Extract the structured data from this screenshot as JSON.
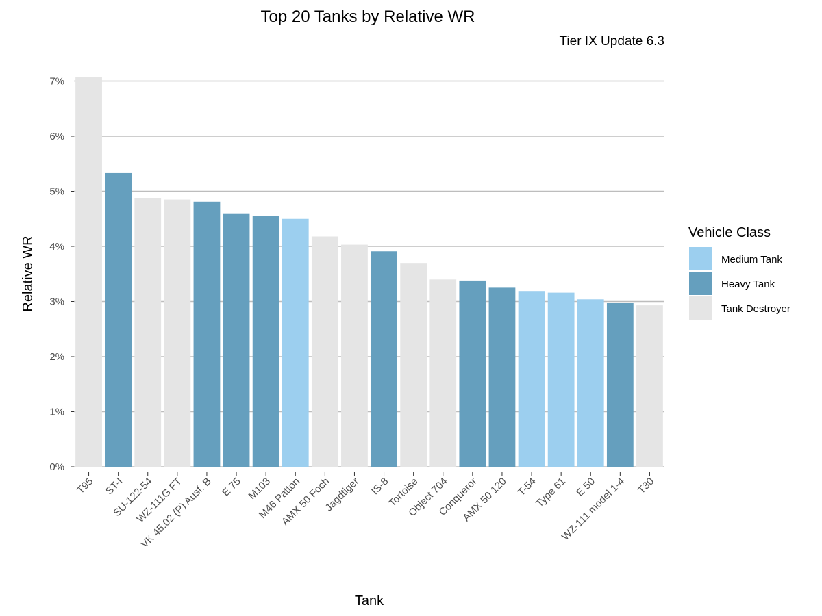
{
  "chart_data": {
    "type": "bar",
    "title": "Top 20 Tanks by Relative WR",
    "subtitle": "Tier IX Update 6.3",
    "xlabel": "Tank",
    "ylabel": "Relative WR",
    "ylim": [
      0,
      7.05
    ],
    "yticks": [
      0,
      1,
      2,
      3,
      4,
      5,
      6,
      7
    ],
    "ytick_labels": [
      "0%",
      "1%",
      "2%",
      "3%",
      "4%",
      "5%",
      "6%",
      "7%"
    ],
    "grid": "horizontal",
    "legend": {
      "title": "Vehicle Class",
      "placement": "right",
      "entries": [
        {
          "label": "Medium Tank",
          "color": "#9ccfef"
        },
        {
          "label": "Heavy Tank",
          "color": "#659fbe"
        },
        {
          "label": "Tank Destroyer",
          "color": "#e5e5e5"
        }
      ]
    },
    "categories": [
      "T95",
      "ST-I",
      "SU-122-54",
      "WZ-111G FT",
      "VK 45.02 (P) Ausf. B",
      "E 75",
      "M103",
      "M46 Patton",
      "AMX 50 Foch",
      "Jagdtiger",
      "IS-8",
      "Tortoise",
      "Object 704",
      "Conqueror",
      "AMX 50 120",
      "T-54",
      "Type 61",
      "E 50",
      "WZ-111 model 1-4",
      "T30"
    ],
    "values": [
      7.07,
      5.33,
      4.87,
      4.85,
      4.81,
      4.6,
      4.55,
      4.5,
      4.18,
      4.03,
      3.91,
      3.7,
      3.4,
      3.38,
      3.25,
      3.19,
      3.16,
      3.04,
      2.98,
      2.93
    ],
    "classes": [
      "Tank Destroyer",
      "Heavy Tank",
      "Tank Destroyer",
      "Tank Destroyer",
      "Heavy Tank",
      "Heavy Tank",
      "Heavy Tank",
      "Medium Tank",
      "Tank Destroyer",
      "Tank Destroyer",
      "Heavy Tank",
      "Tank Destroyer",
      "Tank Destroyer",
      "Heavy Tank",
      "Heavy Tank",
      "Medium Tank",
      "Medium Tank",
      "Medium Tank",
      "Heavy Tank",
      "Tank Destroyer"
    ]
  }
}
